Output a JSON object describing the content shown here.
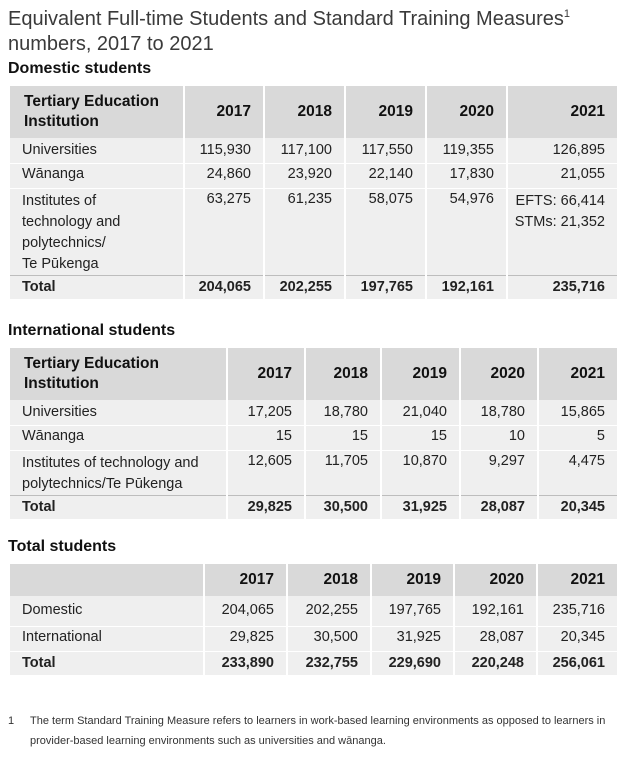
{
  "title": {
    "text": "Equivalent Full-time Students and Standard Training Measures",
    "sup": "1",
    "line2": "numbers, 2017 to 2021"
  },
  "domestic": {
    "heading": "Domestic students",
    "header_label": "Tertiary Education Institution",
    "years": [
      "2017",
      "2018",
      "2019",
      "2020",
      "2021"
    ],
    "rows": [
      {
        "label": "Universities",
        "values": [
          "115,930",
          "117,100",
          "117,550",
          "119,355",
          "126,895"
        ]
      },
      {
        "label": "Wānanga",
        "values": [
          "24,860",
          "23,920",
          "22,140",
          "17,830",
          "21,055"
        ]
      },
      {
        "label_lines": [
          "Institutes of",
          "technology and",
          "polytechnics/",
          "Te Pūkenga"
        ],
        "values": [
          "63,275",
          "61,235",
          "58,075",
          "54,976"
        ],
        "value_2021_lines": [
          "EFTS: 66,414",
          "STMs: 21,352"
        ]
      }
    ],
    "total": {
      "label": "Total",
      "values": [
        "204,065",
        "202,255",
        "197,765",
        "192,161",
        "235,716"
      ]
    }
  },
  "international": {
    "heading": "International students",
    "header_label": "Tertiary Education Institution",
    "years": [
      "2017",
      "2018",
      "2019",
      "2020",
      "2021"
    ],
    "rows": [
      {
        "label": "Universities",
        "values": [
          "17,205",
          "18,780",
          "21,040",
          "18,780",
          "15,865"
        ]
      },
      {
        "label": "Wānanga",
        "values": [
          "15",
          "15",
          "15",
          "10",
          "5"
        ]
      },
      {
        "label_lines": [
          "Institutes of technology and",
          "polytechnics/Te Pūkenga"
        ],
        "values": [
          "12,605",
          "11,705",
          "10,870",
          "9,297",
          "4,475"
        ]
      }
    ],
    "total": {
      "label": "Total",
      "values": [
        "29,825",
        "30,500",
        "31,925",
        "28,087",
        "20,345"
      ]
    }
  },
  "totals": {
    "heading": "Total students",
    "years": [
      "2017",
      "2018",
      "2019",
      "2020",
      "2021"
    ],
    "rows": [
      {
        "label": "Domestic",
        "values": [
          "204,065",
          "202,255",
          "197,765",
          "192,161",
          "235,716"
        ]
      },
      {
        "label": "International",
        "values": [
          "29,825",
          "30,500",
          "31,925",
          "28,087",
          "20,345"
        ]
      }
    ],
    "total": {
      "label": "Total",
      "values": [
        "233,890",
        "232,755",
        "229,690",
        "220,248",
        "256,061"
      ]
    }
  },
  "footnote": {
    "number": "1",
    "text": "The term Standard Training Measure refers to learners in work-based learning environments as opposed to learners in provider-based learning environments such as universities and wānanga."
  }
}
